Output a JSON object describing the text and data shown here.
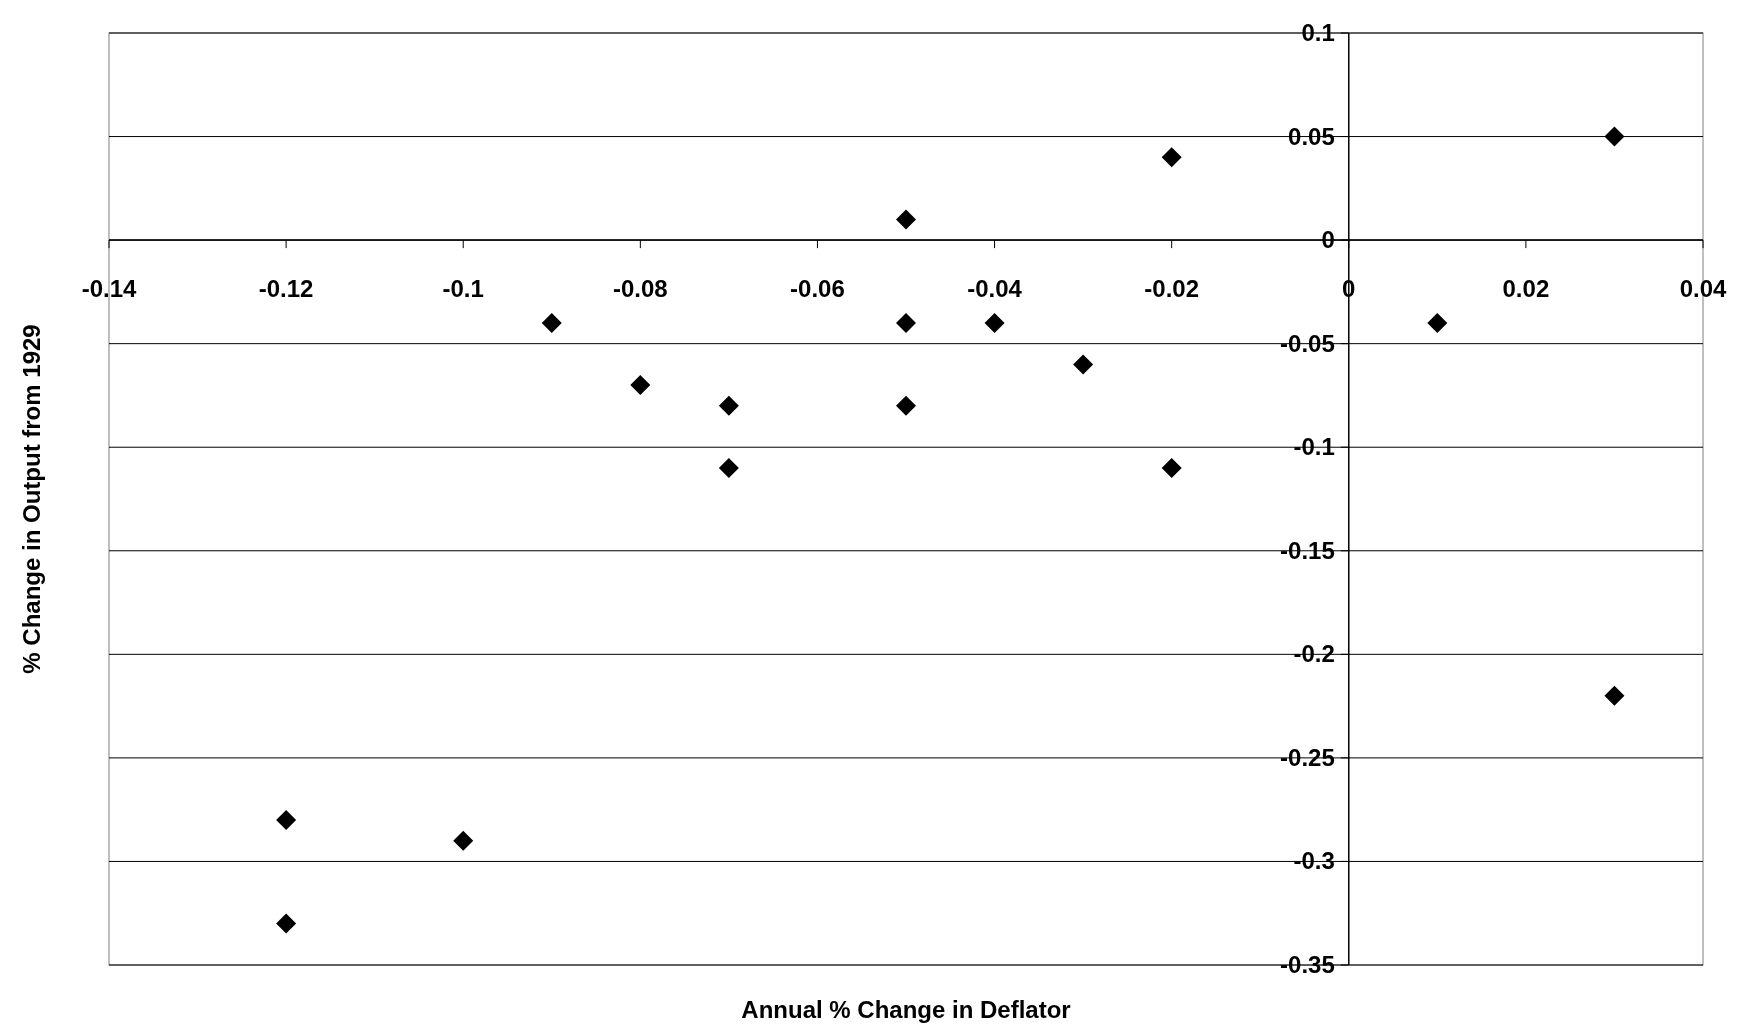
{
  "chart_data": {
    "type": "scatter",
    "xlabel": "Annual % Change in Deflator",
    "ylabel": "% Change in Output from 1929",
    "x": [
      -0.12,
      -0.12,
      -0.1,
      -0.09,
      -0.08,
      -0.07,
      -0.07,
      -0.05,
      -0.05,
      -0.05,
      -0.04,
      -0.03,
      -0.02,
      -0.02,
      0.01,
      0.03,
      0.03
    ],
    "series": [
      {
        "color": "#000000",
        "values": [
          -0.28,
          -0.33,
          -0.29,
          -0.04,
          -0.07,
          -0.08,
          -0.11,
          0.01,
          -0.04,
          -0.08,
          -0.04,
          -0.06,
          0.04,
          -0.11,
          -0.04,
          0.05,
          -0.22
        ]
      }
    ],
    "xlim": [
      -0.14,
      0.04
    ],
    "xticks": [
      -0.14,
      -0.12,
      -0.1,
      -0.08,
      -0.06,
      -0.04,
      -0.02,
      0,
      0.02,
      0.04
    ],
    "ylim": [
      -0.35,
      0.1
    ],
    "yticks": [
      -0.35,
      -0.3,
      -0.25,
      -0.2,
      -0.15,
      -0.1,
      -0.05,
      0,
      0.05,
      0.1
    ],
    "grid": "y",
    "marker": "diamond"
  }
}
